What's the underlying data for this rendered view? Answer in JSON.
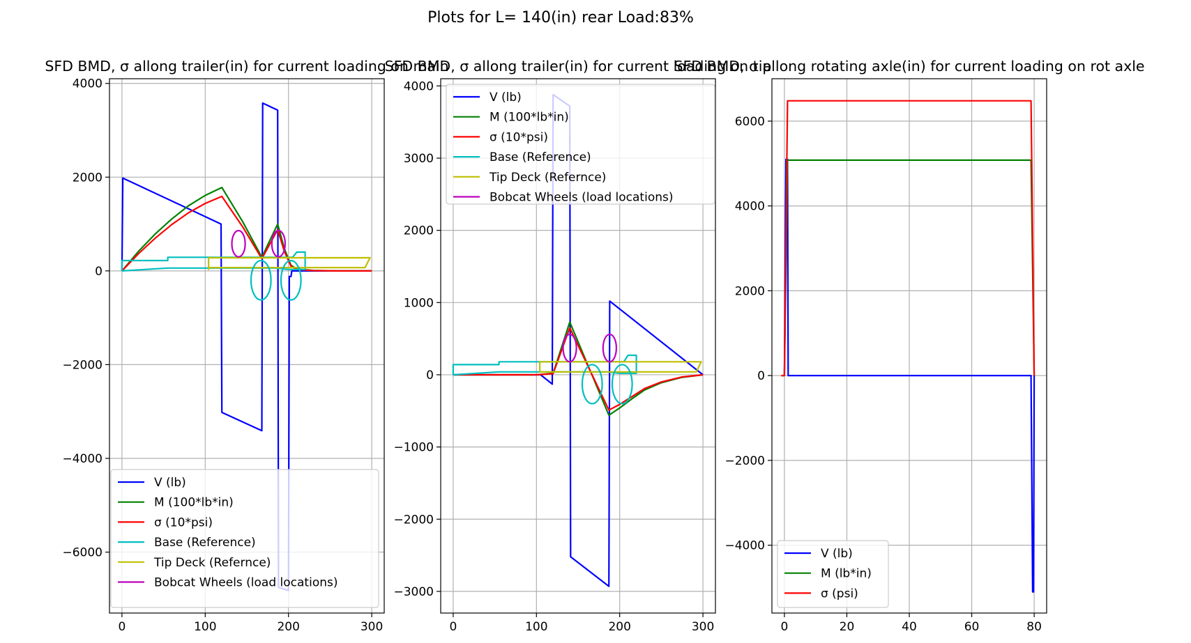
{
  "figure": {
    "suptitle": "Plots for L= 140(in) rear Load:83%"
  },
  "colors": {
    "V": "#0000ff",
    "M": "#008000",
    "sigma": "#ff0000",
    "base": "#00bfbf",
    "tip": "#bfbf00",
    "wheels": "#bf00bf",
    "grid": "#b0b0b0"
  },
  "chart_data": [
    {
      "type": "line",
      "title": "SFD BMD, σ allong trailer(in) for current loading on main",
      "xlim": [
        -15,
        315
      ],
      "ylim": [
        -7300,
        4100
      ],
      "xticks": [
        0,
        100,
        200,
        300
      ],
      "yticks": [
        -6000,
        -4000,
        -2000,
        0,
        2000,
        4000
      ],
      "ytick_labels": [
        "−6000",
        "−4000",
        "−2000",
        "0",
        "2000",
        "4000"
      ],
      "grid": true,
      "legend_position": "lower right",
      "series": [
        {
          "name": "V (lb)",
          "color_key": "V",
          "x": [
            0,
            1,
            119,
            120,
            168,
            169,
            187,
            188,
            200,
            201,
            203,
            204,
            300
          ],
          "y": [
            0,
            1980,
            1000,
            -3020,
            -3410,
            3580,
            3430,
            -6750,
            -6820,
            -120,
            -120,
            0,
            0
          ]
        },
        {
          "name": "M (100*lb*in)",
          "color_key": "M",
          "x": [
            0,
            20,
            40,
            60,
            80,
            100,
            120,
            145,
            168,
            187,
            195,
            203,
            210,
            230,
            260,
            300
          ],
          "y": [
            0,
            420,
            790,
            1110,
            1390,
            1610,
            1780,
            1050,
            290,
            1000,
            480,
            120,
            40,
            10,
            0,
            0
          ]
        },
        {
          "name": "σ (10*psi)",
          "color_key": "sigma",
          "x": [
            0,
            20,
            40,
            60,
            80,
            100,
            120,
            145,
            168,
            187,
            195,
            203,
            210,
            230,
            260,
            300
          ],
          "y": [
            0,
            370,
            700,
            990,
            1240,
            1440,
            1590,
            940,
            260,
            880,
            420,
            100,
            30,
            5,
            0,
            0
          ]
        },
        {
          "name": "Base (Reference)",
          "color_key": "base",
          "x": [
            0,
            0,
            55,
            55,
            205,
            210,
            220,
            220,
            200,
            185,
            55,
            0
          ],
          "y": [
            0,
            220,
            220,
            290,
            290,
            400,
            400,
            30,
            30,
            60,
            60,
            0
          ]
        },
        {
          "name": "Tip Deck (Refernce)",
          "color_key": "tip",
          "x": [
            104,
            104,
            298,
            292,
            104
          ],
          "y": [
            20,
            280,
            280,
            70,
            70
          ]
        },
        {
          "name": "Bobcat Wheels (load locations)",
          "color_key": "wheels",
          "x": [],
          "y": []
        }
      ],
      "ellipses": [
        {
          "color_key": "wheels",
          "cx": 140,
          "cy": 580,
          "rx": 8,
          "ry": 280
        },
        {
          "color_key": "wheels",
          "cx": 188,
          "cy": 580,
          "rx": 8,
          "ry": 280
        },
        {
          "color_key": "base",
          "cx": 167,
          "cy": -200,
          "rx": 12,
          "ry": 420
        },
        {
          "color_key": "base",
          "cx": 203,
          "cy": -200,
          "rx": 12,
          "ry": 420
        }
      ]
    },
    {
      "type": "line",
      "title": "SFD BMD, σ allong trailer(in) for current loading on tip",
      "xlim": [
        -15,
        315
      ],
      "ylim": [
        -3300,
        4100
      ],
      "xticks": [
        0,
        100,
        200,
        300
      ],
      "yticks": [
        -3000,
        -2000,
        -1000,
        0,
        1000,
        2000,
        3000,
        4000
      ],
      "ytick_labels": [
        "−3000",
        "−2000",
        "−1000",
        "0",
        "1000",
        "2000",
        "3000",
        "4000"
      ],
      "grid": true,
      "legend_position": "upper left",
      "series": [
        {
          "name": "V (lb)",
          "color_key": "V",
          "x": [
            0,
            105,
            119,
            120,
            140,
            141,
            187,
            188,
            300
          ],
          "y": [
            0,
            0,
            -130,
            3880,
            3720,
            -2520,
            -2930,
            1020,
            0
          ]
        },
        {
          "name": "M (100*lb*in)",
          "color_key": "M",
          "x": [
            0,
            100,
            120,
            140,
            187,
            200,
            215,
            230,
            250,
            275,
            300
          ],
          "y": [
            0,
            0,
            20,
            730,
            -560,
            -460,
            -330,
            -210,
            -110,
            -35,
            0
          ]
        },
        {
          "name": "σ (10*psi)",
          "color_key": "sigma",
          "x": [
            0,
            100,
            120,
            140,
            187,
            200,
            215,
            230,
            250,
            275,
            300
          ],
          "y": [
            0,
            0,
            15,
            650,
            -490,
            -410,
            -300,
            -190,
            -100,
            -30,
            0
          ]
        },
        {
          "name": "Base (Reference)",
          "color_key": "base",
          "x": [
            0,
            0,
            55,
            55,
            205,
            210,
            220,
            220,
            200,
            185,
            55,
            0
          ],
          "y": [
            0,
            140,
            140,
            180,
            180,
            270,
            270,
            20,
            20,
            40,
            40,
            0
          ]
        },
        {
          "name": "Tip Deck (Refernce)",
          "color_key": "tip",
          "x": [
            104,
            104,
            298,
            292,
            104
          ],
          "y": [
            30,
            180,
            180,
            40,
            40
          ]
        },
        {
          "name": "Bobcat Wheels (load locations)",
          "color_key": "wheels",
          "x": [],
          "y": []
        }
      ],
      "ellipses": [
        {
          "color_key": "wheels",
          "cx": 140,
          "cy": 370,
          "rx": 8,
          "ry": 190
        },
        {
          "color_key": "wheels",
          "cx": 188,
          "cy": 370,
          "rx": 8,
          "ry": 190
        },
        {
          "color_key": "base",
          "cx": 167,
          "cy": -130,
          "rx": 12,
          "ry": 270
        },
        {
          "color_key": "base",
          "cx": 203,
          "cy": -130,
          "rx": 12,
          "ry": 270
        }
      ]
    },
    {
      "type": "line",
      "title": "SFD BMD, σ allong rotating axle(in) for current loading on rot axle",
      "xlim": [
        -4,
        84
      ],
      "ylim": [
        -5600,
        7000
      ],
      "xticks": [
        0,
        20,
        40,
        60,
        80
      ],
      "yticks": [
        -4000,
        -2000,
        0,
        2000,
        4000,
        6000
      ],
      "ytick_labels": [
        "−4000",
        "−2000",
        "0",
        "2000",
        "4000",
        "6000"
      ],
      "grid": true,
      "legend_position": "lower left",
      "series": [
        {
          "name": "V (lb)",
          "color_key": "V",
          "x": [
            0,
            0.5,
            1,
            1.2,
            79,
            79.5,
            79.8,
            80
          ],
          "y": [
            0,
            5100,
            5100,
            0,
            0,
            -5100,
            -5100,
            0
          ]
        },
        {
          "name": "M (lb*in)",
          "color_key": "M",
          "x": [
            -1,
            0,
            1,
            79,
            80
          ],
          "y": [
            0,
            0,
            5080,
            5080,
            0
          ]
        },
        {
          "name": "σ (psi)",
          "color_key": "sigma",
          "x": [
            -1,
            0,
            1,
            79,
            80
          ],
          "y": [
            0,
            0,
            6480,
            6480,
            0
          ]
        }
      ],
      "ellipses": []
    }
  ]
}
